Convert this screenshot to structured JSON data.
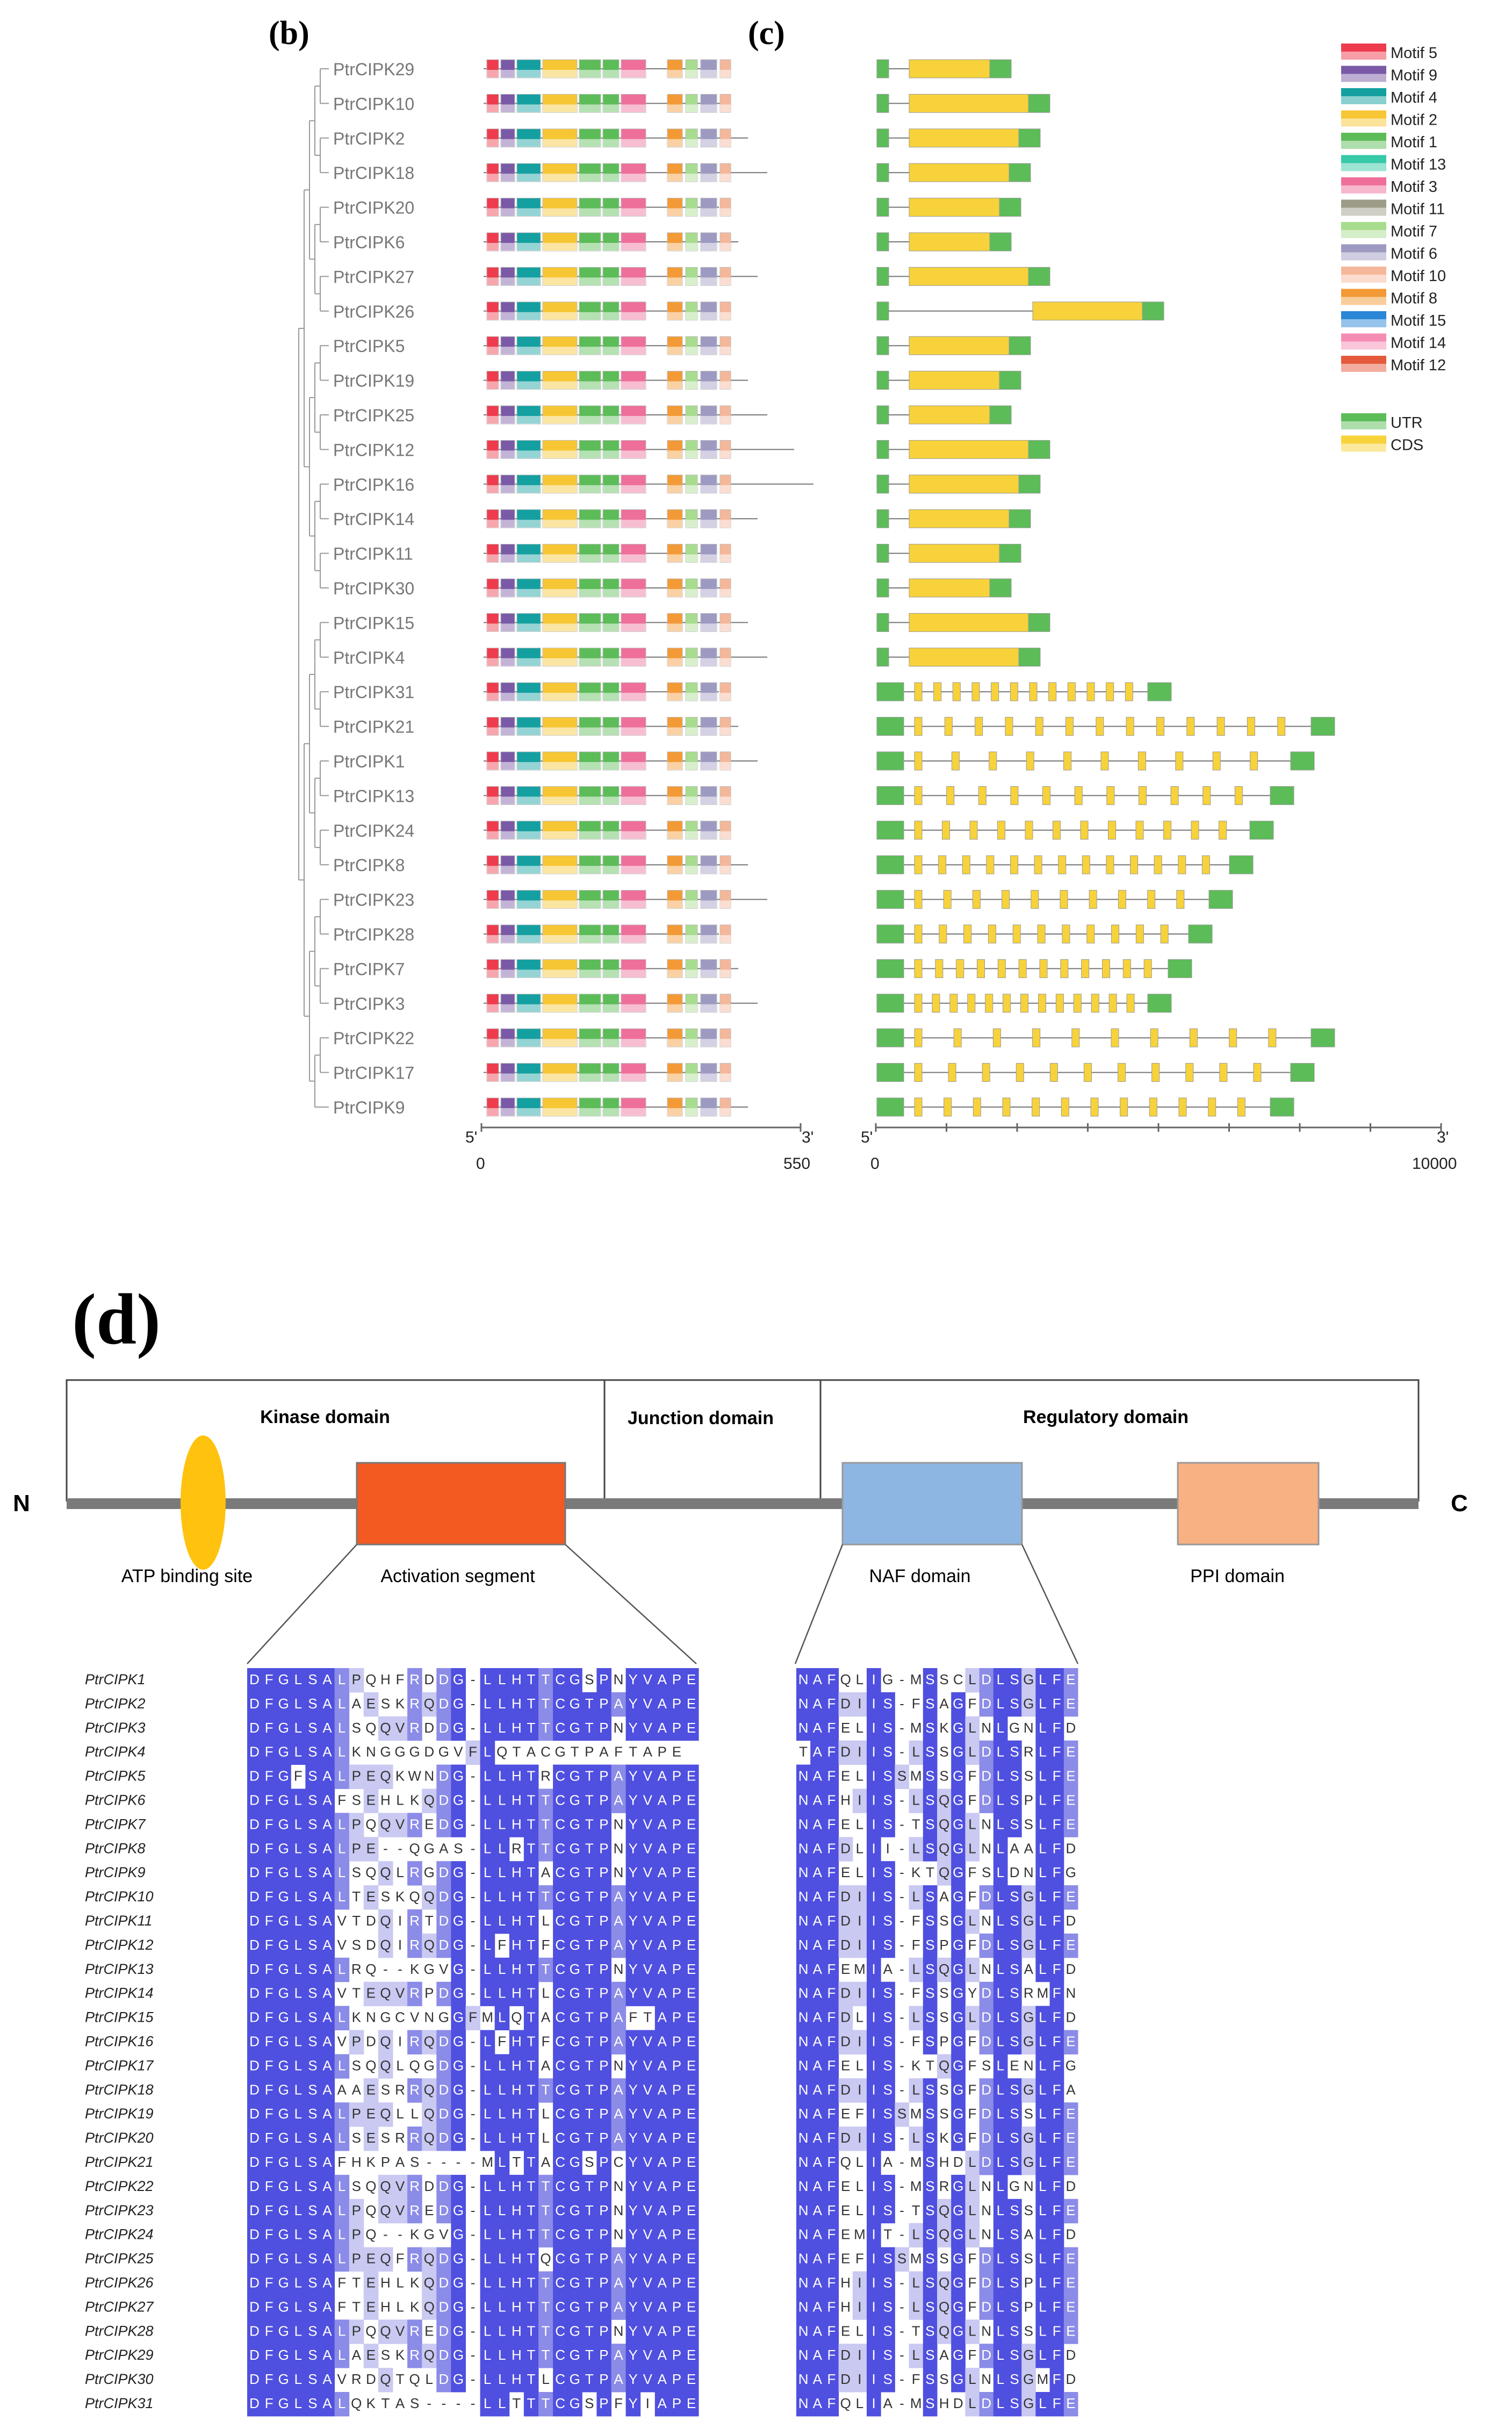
{
  "panels": {
    "b": "(b)",
    "c": "(c)",
    "d": "(d)"
  },
  "genes": [
    "PtrCIPK29",
    "PtrCIPK10",
    "PtrCIPK2",
    "PtrCIPK18",
    "PtrCIPK20",
    "PtrCIPK6",
    "PtrCIPK27",
    "PtrCIPK26",
    "PtrCIPK5",
    "PtrCIPK19",
    "PtrCIPK25",
    "PtrCIPK12",
    "PtrCIPK16",
    "PtrCIPK14",
    "PtrCIPK11",
    "PtrCIPK30",
    "PtrCIPK15",
    "PtrCIPK4",
    "PtrCIPK31",
    "PtrCIPK21",
    "PtrCIPK1",
    "PtrCIPK13",
    "PtrCIPK24",
    "PtrCIPK8",
    "PtrCIPK23",
    "PtrCIPK28",
    "PtrCIPK7",
    "PtrCIPK3",
    "PtrCIPK22",
    "PtrCIPK17",
    "PtrCIPK9"
  ],
  "intron_rich": [
    false,
    false,
    false,
    false,
    false,
    false,
    false,
    false,
    false,
    false,
    false,
    false,
    false,
    false,
    false,
    false,
    false,
    false,
    true,
    true,
    true,
    true,
    true,
    true,
    true,
    true,
    true,
    true,
    true,
    true,
    true
  ],
  "legend": {
    "motifs": [
      {
        "label": "Motif 5",
        "color": "#ee3b4d"
      },
      {
        "label": "Motif 9",
        "color": "#7a5aa6"
      },
      {
        "label": "Motif 4",
        "color": "#14a0a0"
      },
      {
        "label": "Motif 2",
        "color": "#f7c634"
      },
      {
        "label": "Motif 1",
        "color": "#5cbc58"
      },
      {
        "label": "Motif 13",
        "color": "#38c9a8"
      },
      {
        "label": "Motif 3",
        "color": "#ee6f9a"
      },
      {
        "label": "Motif 11",
        "color": "#9c9c88"
      },
      {
        "label": "Motif 7",
        "color": "#a8dc8e"
      },
      {
        "label": "Motif 6",
        "color": "#9d9ac2"
      },
      {
        "label": "Motif 10",
        "color": "#f5b79a"
      },
      {
        "label": "Motif 8",
        "color": "#f39a36"
      },
      {
        "label": "Motif 15",
        "color": "#2a86d6"
      },
      {
        "label": "Motif 14",
        "color": "#f58cb4"
      },
      {
        "label": "Motif 12",
        "color": "#e55a3c"
      }
    ],
    "features": [
      {
        "label": "UTR",
        "color": "#5cbc58"
      },
      {
        "label": "CDS",
        "color": "#f7d23a"
      }
    ]
  },
  "axes": {
    "motif": {
      "five": "5'",
      "three": "3'",
      "start": "0",
      "end": "550"
    },
    "gene": {
      "five": "5'",
      "three": "3'",
      "start": "0",
      "end": "10000"
    }
  },
  "domains": {
    "n_term": "N",
    "c_term": "C",
    "kinase": "Kinase domain",
    "junction": "Junction domain",
    "regulatory": "Regulatory domain",
    "atp": "ATP binding site",
    "activation": "Activation segment",
    "naf": "NAF domain",
    "ppi": "PPI domain"
  },
  "alignment": {
    "names": [
      "PtrCIPK1",
      "PtrCIPK2",
      "PtrCIPK3",
      "PtrCIPK4",
      "PtrCIPK5",
      "PtrCIPK6",
      "PtrCIPK7",
      "PtrCIPK8",
      "PtrCIPK9",
      "PtrCIPK10",
      "PtrCIPK11",
      "PtrCIPK12",
      "PtrCIPK13",
      "PtrCIPK14",
      "PtrCIPK15",
      "PtrCIPK16",
      "PtrCIPK17",
      "PtrCIPK18",
      "PtrCIPK19",
      "PtrCIPK20",
      "PtrCIPK21",
      "PtrCIPK22",
      "PtrCIPK23",
      "PtrCIPK24",
      "PtrCIPK25",
      "PtrCIPK26",
      "PtrCIPK27",
      "PtrCIPK28",
      "PtrCIPK29",
      "PtrCIPK30",
      "PtrCIPK31"
    ],
    "activation": [
      "DFGLSALPQHFRDDG-LLHTTCGSPNYVAPE",
      "DFGLSALAESKRQDG-LLHTTCGTPAYVAPE",
      "DFGLSALSQQVRDDG-LLHTTCGTPNYVAPE",
      "DFGLSALKNGGGDGVFLQTACGTPAFTAPE",
      "DFGFSALPEQKWNDG-LLHTRCGTPAYVAPE",
      "DFGLSAFSEHLKQDG-LLHTTCGTPAYVAPE",
      "DFGLSALPQQVREDG-LLHTTCGTPNYVAPE",
      "DFGLSALPE--QGAS-LLRTTCGTPNYVAPE",
      "DFGLSALSQQLRGDG-LLHTACGTPNYVAPE",
      "DFGLSALTESKQQDG-LLHTTCGTPAYVAPE",
      "DFGLSAVTDQIRTDG-LLHTLCGTPAYVAPE",
      "DFGLSAVSDQIRQDG-LFHTFCGTPAYVAPE",
      "DFGLSALRQ--KGVG-LLHTTCGTPNYVAPE",
      "DFGLSAVTEQVRPDG-LLHTLCGTPAYVAPE",
      "DFGLSALKNGCVNGGFMLQTACGTPAFTAPE",
      "DFGLSAVPDQIRQDG-LFHTFCGTPAYVAPE",
      "DFGLSALSQQLQGDG-LLHTACGTPNYVAPE",
      "DFGLSAAAESRRQDG-LLHTTCGTPAYVAPE",
      "DFGLSALPEQLLQDG-LLHTLCGTPAYVAPE",
      "DFGLSALSESRRQDG-LLHTLCGTPAYVAPE",
      "DFGLSAFHKPAS----MLTTACGSPCYVAPE",
      "DFGLSALSQQVRDDG-LLHTTCGTPNYVAPE",
      "DFGLSALPQQVREDG-LLHTTCGTPNYVAPE",
      "DFGLSALPQ--KGVG-LLHTTCGTPNYVAPE",
      "DFGLSALPEQFRQDG-LLHTQCGTPAYVAPE",
      "DFGLSAFTEHLKQDG-LLHTTCGTPAYVAPE",
      "DFGLSAFTEHLKQDG-LLHTTCGTPAYVAPE",
      "DFGLSALPQQVREDG-LLHTTCGTPNYVAPE",
      "DFGLSALAESKRQDG-LLHTTCGTPAYVAPE",
      "DFGLSAVRDQTQLDG-LLHTLCGTPAYVAPE",
      "DFGLSALQKTAS----LLTTTCGSPFYIAPE"
    ],
    "naf": [
      "NAFQLIG-MSSCLDLSGLFE",
      "NAFDIIS-FSAGFDLSGLFE",
      "NAFELIS-MSKGLNLGNLFD",
      "TAFDIIS-LSSGLDLSRLFE",
      "NAFELISSMSSGFDLSSLFE",
      "NAFHIIS-LSQGFDLSPLFE",
      "NAFELIS-TSQGLNLSSLFE",
      "NAFDLII-LSQGLNLAALFD",
      "NAFELIS-KTQGFSLDNLFG",
      "NAFDIIS-LSAGFDLSGLFE",
      "NAFDIIS-FSSGLNLSGLFD",
      "NAFDIIS-FSPGFDLSGLFE",
      "NAFEMIA-LSQGLNLSALFD",
      "NAFDIIS-FSSGYDLSRMFN",
      "NAFDLIS-LSSGLDLSGLFD",
      "NAFDIIS-FSPGFDLSGLFE",
      "NAFELIS-KTQGFSLENLFG",
      "NAFDIIS-LSSGFDLSGLFA",
      "NAFEFISSMSSGFDLSSLFE",
      "NAFDIIS-LSKGFDLSGLFE",
      "NAFQLIA-MSHDLDLSGLFE",
      "NAFELIS-MSRGLNLGNLFD",
      "NAFELIS-TSQGLNLSSLFE",
      "NAFEMIT-LSQGLNLSALFD",
      "NAFEFISSMSSGFDLSSLFE",
      "NAFHIIS-LSQGFDLSPLFE",
      "NAFHIIS-LSQGFDLSPLFE",
      "NAFELIS-TSQGLNLSSLFE",
      "NAFDIIS-LSAGFDLSGLFD",
      "NAFDIIS-FSSGLNLSGMFD",
      "NAFQLIA-MSHDLDLSGLFE"
    ]
  }
}
